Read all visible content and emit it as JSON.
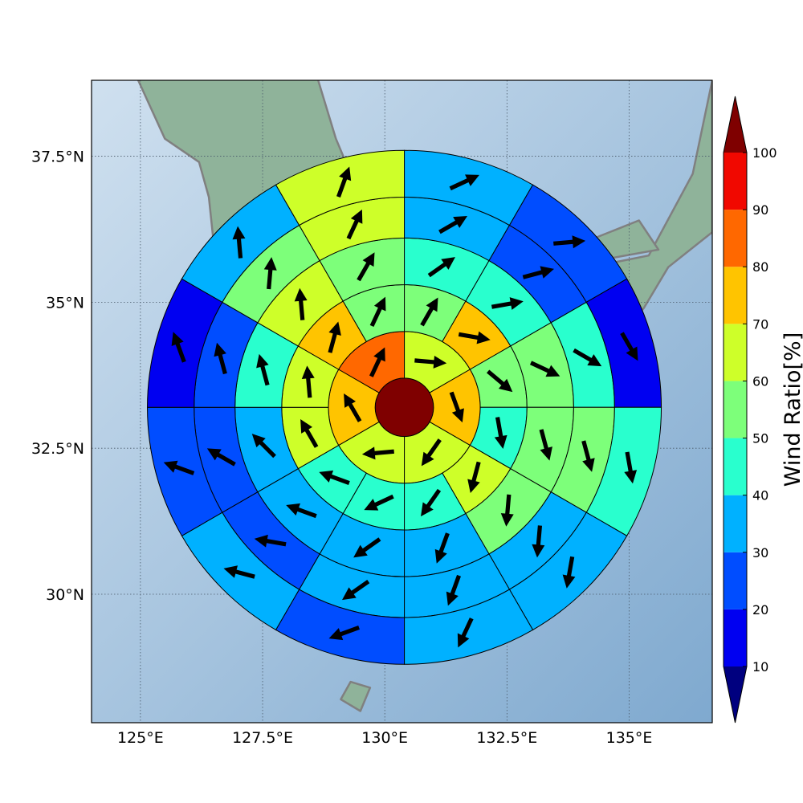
{
  "map": {
    "lon_ticks": [
      {
        "value": 125,
        "label": "125°E"
      },
      {
        "value": 127.5,
        "label": "127.5°E"
      },
      {
        "value": 130,
        "label": "130°E"
      },
      {
        "value": 132.5,
        "label": "132.5°E"
      },
      {
        "value": 135,
        "label": "135°E"
      }
    ],
    "lat_ticks": [
      {
        "value": 37.5,
        "label": "37.5°N"
      },
      {
        "value": 35,
        "label": "35°N"
      },
      {
        "value": 32.5,
        "label": "32.5°N"
      },
      {
        "value": 30,
        "label": "30°N"
      }
    ],
    "lon_range": [
      124.0,
      136.7
    ],
    "lat_range": [
      27.8,
      38.8
    ],
    "grid": true,
    "colors": {
      "ocean_light": "#cfe0ef",
      "ocean_dark": "#7fa9cf",
      "land": "#8fb39a",
      "coastline": "#808080",
      "gridline": "#4a5a6a"
    }
  },
  "colorbar": {
    "label": "Wind Ratio[%]",
    "ticks": [
      "10",
      "20",
      "30",
      "40",
      "50",
      "60",
      "70",
      "80",
      "90",
      "100"
    ],
    "extend": "both",
    "colors": [
      "#00007f",
      "#0000f1",
      "#004dff",
      "#00b1ff",
      "#29ffce",
      "#7dff7a",
      "#ceff29",
      "#ffc400",
      "#ff6800",
      "#f10800",
      "#7f0000"
    ]
  },
  "chart_data": {
    "type": "polar-sector-map",
    "center_lon_lat": [
      130.4,
      33.2
    ],
    "ring_edges_deg": [
      0,
      0.5,
      1.3,
      2.1,
      2.9,
      3.6,
      4.4
    ],
    "sector_starts_deg_cw_from_north": [
      [
        0
      ],
      [
        0,
        60,
        120,
        180,
        240,
        300
      ],
      [
        0,
        30,
        60,
        90,
        120,
        150,
        180,
        210,
        240,
        270,
        300,
        330
      ],
      [
        0,
        30,
        60,
        90,
        120,
        150,
        180,
        210,
        240,
        270,
        300,
        330
      ],
      [
        0,
        30,
        60,
        90,
        120,
        150,
        180,
        210,
        240,
        270,
        300,
        330
      ],
      [
        0,
        30,
        60,
        90,
        120,
        150,
        180,
        210,
        240,
        270,
        300,
        330
      ]
    ],
    "ratio_percent": [
      [
        100
      ],
      [
        62,
        75,
        62,
        62,
        75,
        85
      ],
      [
        55,
        72,
        55,
        45,
        62,
        48,
        45,
        45,
        62,
        65,
        72,
        55
      ],
      [
        45,
        48,
        55,
        55,
        55,
        35,
        35,
        35,
        35,
        45,
        62,
        55
      ],
      [
        35,
        22,
        45,
        55,
        35,
        35,
        35,
        22,
        22,
        25,
        55,
        62
      ],
      [
        35,
        22,
        15,
        45,
        35,
        35,
        22,
        35,
        22,
        15,
        35,
        62
      ]
    ],
    "arrow_direction_deg_cw_from_north": [
      [],
      [
        95,
        160,
        215,
        265,
        330,
        25
      ],
      [
        30,
        100,
        130,
        170,
        195,
        215,
        245,
        290,
        330,
        355,
        15,
        25
      ],
      [
        55,
        80,
        115,
        165,
        185,
        200,
        235,
        290,
        315,
        345,
        355,
        30
      ],
      [
        60,
        75,
        120,
        165,
        185,
        200,
        235,
        280,
        300,
        345,
        5,
        25
      ],
      [
        65,
        85,
        150,
        170,
        190,
        205,
        250,
        285,
        290,
        340,
        355,
        20
      ]
    ]
  }
}
